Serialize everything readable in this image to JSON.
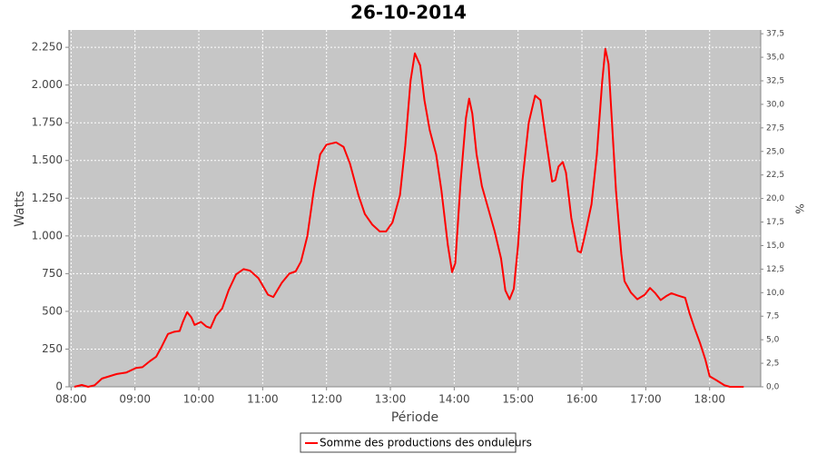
{
  "chart_data": {
    "type": "line",
    "title": "26-10-2014",
    "xlabel": "Période",
    "ylabel": "Watts",
    "y2label": "%",
    "x": [
      "08:03",
      "08:10",
      "08:16",
      "08:22",
      "08:29",
      "08:36",
      "08:43",
      "08:52",
      "09:01",
      "09:07",
      "09:14",
      "09:20",
      "09:25",
      "09:31",
      "09:37",
      "09:42",
      "09:45",
      "09:49",
      "09:53",
      "09:56",
      "10:02",
      "10:07",
      "10:11",
      "10:16",
      "10:22",
      "10:28",
      "10:35",
      "10:42",
      "10:48",
      "10:56",
      "11:05",
      "11:10",
      "11:18",
      "11:25",
      "11:31",
      "11:36",
      "11:42",
      "11:48",
      "11:54",
      "12:00",
      "12:09",
      "12:16",
      "12:22",
      "12:30",
      "12:36",
      "12:43",
      "12:50",
      "12:56",
      "13:02",
      "13:09",
      "13:14",
      "13:19",
      "13:23",
      "13:28",
      "13:32",
      "13:37",
      "13:43",
      "13:48",
      "13:54",
      "13:58",
      "14:01",
      "14:06",
      "14:11",
      "14:14",
      "14:17",
      "14:21",
      "14:26",
      "14:32",
      "14:38",
      "14:44",
      "14:48",
      "14:52",
      "14:56",
      "15:00",
      "15:04",
      "15:10",
      "15:16",
      "15:21",
      "15:27",
      "15:32",
      "15:35",
      "15:38",
      "15:42",
      "15:45",
      "15:50",
      "15:56",
      "15:59",
      "16:03",
      "16:09",
      "16:14",
      "16:19",
      "16:22",
      "16:25",
      "16:28",
      "16:32",
      "16:37",
      "16:40",
      "16:46",
      "16:52",
      "16:59",
      "17:04",
      "17:09",
      "17:14",
      "17:19",
      "17:24",
      "17:30",
      "17:37",
      "17:41",
      "17:46",
      "17:51",
      "17:56",
      "18:00",
      "18:06",
      "18:14",
      "18:19",
      "18:32"
    ],
    "series": [
      {
        "name": "Somme des productions des onduleurs",
        "color": "#ff0000",
        "values": [
          0,
          12,
          0,
          10,
          55,
          70,
          85,
          95,
          125,
          130,
          170,
          200,
          265,
          350,
          365,
          370,
          430,
          495,
          460,
          410,
          430,
          400,
          390,
          470,
          520,
          640,
          745,
          780,
          770,
          720,
          610,
          595,
          690,
          750,
          765,
          830,
          1000,
          1300,
          1540,
          1605,
          1620,
          1590,
          1480,
          1270,
          1145,
          1075,
          1030,
          1030,
          1090,
          1270,
          1600,
          2030,
          2210,
          2130,
          1900,
          1700,
          1540,
          1300,
          940,
          760,
          820,
          1360,
          1780,
          1910,
          1810,
          1540,
          1330,
          1180,
          1030,
          850,
          640,
          580,
          650,
          940,
          1360,
          1750,
          1930,
          1900,
          1600,
          1360,
          1370,
          1460,
          1490,
          1420,
          1120,
          900,
          890,
          1010,
          1210,
          1540,
          2020,
          2240,
          2140,
          1780,
          1300,
          880,
          700,
          625,
          580,
          610,
          655,
          620,
          575,
          600,
          620,
          605,
          590,
          490,
          385,
          290,
          180,
          70,
          45,
          10,
          0,
          0
        ]
      }
    ],
    "xlim": [
      "07:58",
      "18:48"
    ],
    "xticks": [
      "08:00",
      "09:00",
      "10:00",
      "11:00",
      "12:00",
      "13:00",
      "14:00",
      "15:00",
      "16:00",
      "17:00",
      "18:00"
    ],
    "ylim": [
      0,
      2365
    ],
    "yticks": [
      0,
      250,
      500,
      750,
      {
        "value": 1000,
        "label": "1.000"
      },
      {
        "value": 1250,
        "label": "1.250"
      },
      {
        "value": 1500,
        "label": "1.500"
      },
      {
        "value": 1750,
        "label": "1.750"
      },
      {
        "value": 2000,
        "label": "2.000"
      },
      {
        "value": 2250,
        "label": "2.250"
      }
    ],
    "y2lim": [
      0,
      37.9
    ],
    "y2ticks": [
      {
        "value": 0,
        "label": "0,0"
      },
      {
        "value": 2.5,
        "label": "2,5"
      },
      {
        "value": 5,
        "label": "5,0"
      },
      {
        "value": 7.5,
        "label": "7,5"
      },
      {
        "value": 10,
        "label": "10,0"
      },
      {
        "value": 12.5,
        "label": "12,5"
      },
      {
        "value": 15,
        "label": "15,0"
      },
      {
        "value": 17.5,
        "label": "17,5"
      },
      {
        "value": 20,
        "label": "20,0"
      },
      {
        "value": 22.5,
        "label": "22,5"
      },
      {
        "value": 25,
        "label": "25,0"
      },
      {
        "value": 27.5,
        "label": "27,5"
      },
      {
        "value": 30,
        "label": "30,0"
      },
      {
        "value": 32.5,
        "label": "32,5"
      },
      {
        "value": 35,
        "label": "35,0"
      },
      {
        "value": 37.5,
        "label": "37,5"
      }
    ],
    "grid": true,
    "legend": "bottom"
  }
}
